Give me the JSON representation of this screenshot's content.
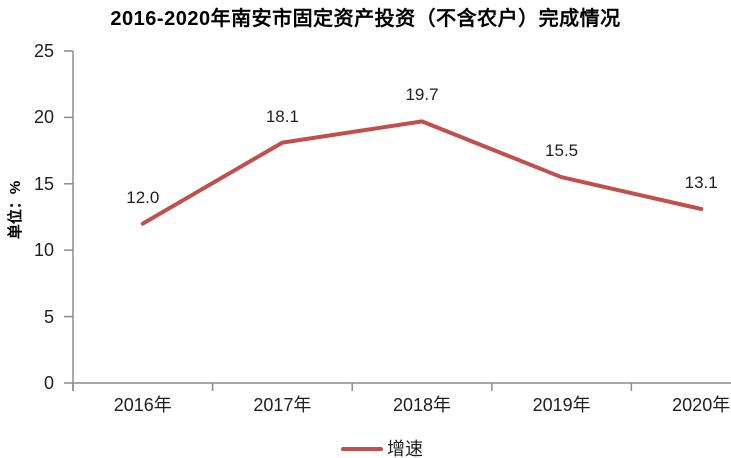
{
  "title": "2016-2020年南安市固定资产投资（不含农户）完成情况",
  "chart_data": {
    "type": "line",
    "title": "2016-2020年南安市固定资产投资（不含农户）完成情况",
    "categories": [
      "2016年",
      "2017年",
      "2018年",
      "2019年",
      "2020年"
    ],
    "series": [
      {
        "name": "增速",
        "values": [
          12.0,
          18.1,
          19.7,
          15.5,
          13.1
        ]
      }
    ],
    "data_labels": [
      "12.0",
      "18.1",
      "19.7",
      "15.5",
      "13.1"
    ],
    "xlabel": "",
    "ylabel": "单位：%",
    "ylim": [
      0,
      25
    ],
    "yticks": [
      0,
      5,
      10,
      15,
      20,
      25
    ],
    "grid": false,
    "legend_position": "bottom",
    "colors": {
      "line": "#C0504D",
      "axis": "#8C8C8C",
      "text": "#1f1f1f",
      "title": "#000000"
    }
  }
}
